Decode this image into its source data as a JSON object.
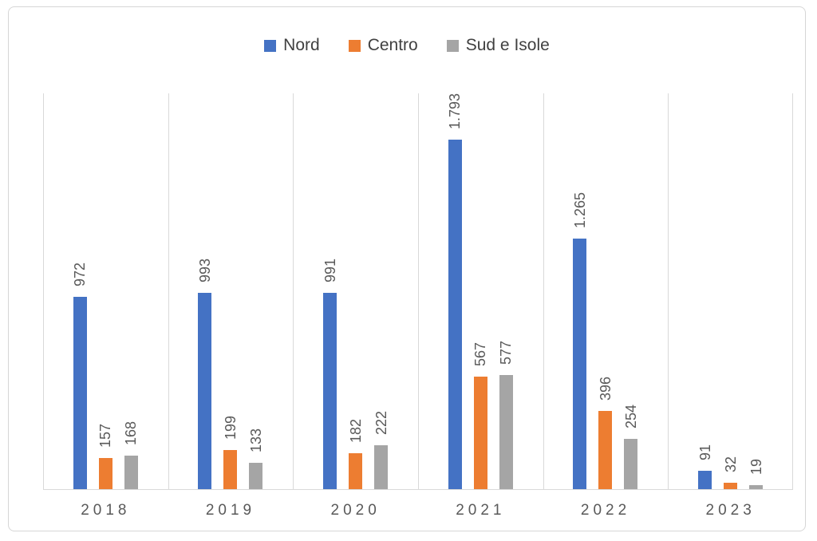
{
  "chart_data": {
    "type": "bar",
    "title": "",
    "xlabel": "",
    "ylabel": "",
    "categories": [
      "2018",
      "2019",
      "2020",
      "2021",
      "2022",
      "2023"
    ],
    "series": [
      {
        "name": "Nord",
        "color": "#4472C4",
        "values": [
          972,
          993,
          991,
          1793,
          1265,
          91
        ],
        "labels": [
          "972",
          "993",
          "991",
          "1.793",
          "1.265",
          "91"
        ]
      },
      {
        "name": "Centro",
        "color": "#ED7D31",
        "values": [
          157,
          199,
          182,
          567,
          396,
          32
        ],
        "labels": [
          "157",
          "199",
          "182",
          "567",
          "396",
          "32"
        ]
      },
      {
        "name": "Sud e Isole",
        "color": "#A5A5A5",
        "values": [
          168,
          133,
          222,
          577,
          254,
          19
        ],
        "labels": [
          "168",
          "133",
          "222",
          "577",
          "254",
          "19"
        ]
      }
    ],
    "ylim": [
      0,
      2000
    ],
    "y_axis_visible": false,
    "grid": "vertical-category-separators-only",
    "legend_position": "top-center",
    "value_labels": "rotated-90-above-bars",
    "number_format": "italian-thousands-dot"
  },
  "legend": {
    "items": [
      {
        "label": "Nord",
        "color": "#4472C4"
      },
      {
        "label": "Centro",
        "color": "#ED7D31"
      },
      {
        "label": "Sud e Isole",
        "color": "#A5A5A5"
      }
    ]
  },
  "colors": {
    "background": "#FFFFFF",
    "frame_border": "#D6D6D6",
    "gridline": "#D9D9D9",
    "axis_line": "#D9D9D9",
    "value_label_text": "#595959",
    "axis_label_text": "#595959",
    "legend_text": "#404040"
  }
}
